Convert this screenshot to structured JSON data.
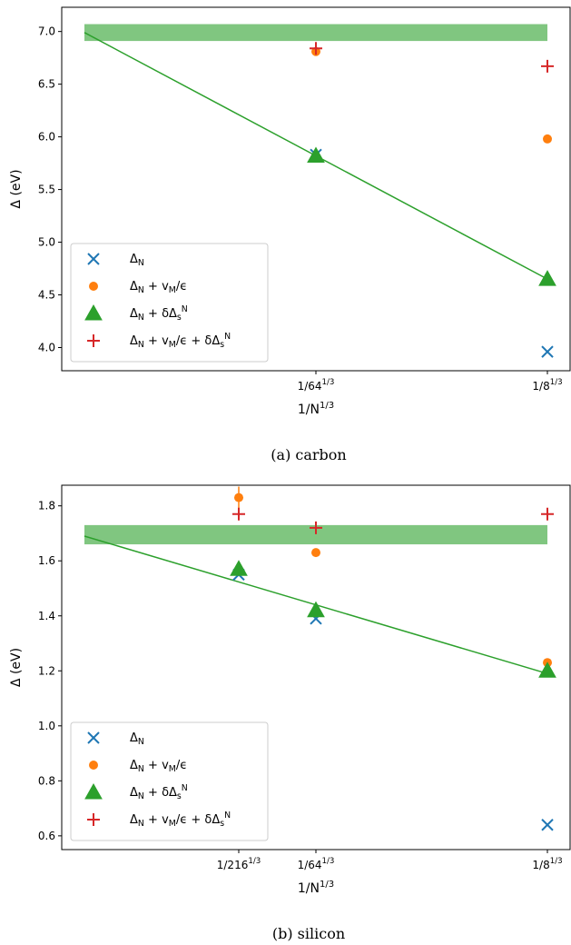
{
  "chart_data": [
    {
      "type": "scatter",
      "caption": "(a) carbon",
      "x_label": "1/N^{1/3}",
      "y_label": "Δ (eV)",
      "xlim": [
        -0.0245,
        0.5245
      ],
      "xticks": [
        {
          "value": 0.25,
          "label": "1/64^{1/3}"
        },
        {
          "value": 0.5,
          "label": "1/8^{1/3}"
        }
      ],
      "ylim": [
        3.78,
        7.23
      ],
      "yticks": [
        {
          "value": 4.0,
          "label": "4.0"
        },
        4.5,
        {
          "value": 5.0,
          "label": "5.0"
        },
        5.5,
        {
          "value": 6.0,
          "label": "6.0"
        },
        6.5,
        {
          "value": 7.0,
          "label": "7.0"
        }
      ],
      "legend": "lower left",
      "x": [
        0.25,
        0.5
      ],
      "band": {
        "x": [
          0,
          0.5
        ],
        "y": [
          6.91,
          7.07
        ],
        "color": "#2ca02c",
        "alpha": 0.6
      },
      "fit": {
        "x": [
          0,
          0.5
        ],
        "values": [
          6.99,
          4.65
        ],
        "color": "#2ca02c"
      },
      "series": [
        {
          "name": "Δ_N",
          "color": "#1f77b4",
          "marker": "x",
          "values": [
            5.83,
            3.96
          ]
        },
        {
          "name": "Δ_N + v_M/ϵ",
          "color": "#ff7f0e",
          "marker": "circle",
          "values": [
            6.81,
            5.98
          ],
          "errors": [
            0.02,
            0.01
          ]
        },
        {
          "name": "Δ_N + δΔ_s^N",
          "color": "#2ca02c",
          "marker": "triangle",
          "values": [
            5.82,
            4.65
          ]
        },
        {
          "name": "Δ_N + v_M/ϵ + δΔ_s^N",
          "color": "#d62728",
          "marker": "plus",
          "values": [
            6.84,
            6.67
          ]
        }
      ]
    },
    {
      "type": "scatter",
      "caption": "(b) silicon",
      "x_label": "1/N^{1/3}",
      "y_label": "Δ (eV)",
      "xlim": [
        -0.0245,
        0.5245
      ],
      "xticks": [
        {
          "value": 0.16667,
          "label": "1/216^{1/3}"
        },
        {
          "value": 0.25,
          "label": "1/64^{1/3}"
        },
        {
          "value": 0.5,
          "label": "1/8^{1/3}"
        }
      ],
      "ylim": [
        0.55,
        1.875
      ],
      "yticks": [
        0.6,
        0.8,
        {
          "value": 1.0,
          "label": "1.0"
        },
        1.2,
        1.4,
        1.6,
        1.8
      ],
      "legend": "lower left",
      "x": [
        0.16667,
        0.25,
        0.5
      ],
      "band": {
        "x": [
          0,
          0.5
        ],
        "y": [
          1.66,
          1.73
        ],
        "color": "#2ca02c",
        "alpha": 0.6
      },
      "fit": {
        "x": [
          0,
          0.5
        ],
        "values": [
          1.69,
          1.19
        ],
        "color": "#2ca02c"
      },
      "series": [
        {
          "name": "Δ_N",
          "color": "#1f77b4",
          "marker": "x",
          "values": [
            1.55,
            1.39,
            0.64
          ]
        },
        {
          "name": "Δ_N + v_M/ϵ",
          "color": "#ff7f0e",
          "marker": "circle",
          "values": [
            1.83,
            1.63,
            1.23
          ],
          "errors": [
            0.04,
            0.01,
            0.01
          ]
        },
        {
          "name": "Δ_N + δΔ_s^N",
          "color": "#2ca02c",
          "marker": "triangle",
          "values": [
            1.57,
            1.42,
            1.2
          ]
        },
        {
          "name": "Δ_N + v_M/ϵ + δΔ_s^N",
          "color": "#d62728",
          "marker": "plus",
          "values": [
            1.77,
            1.72,
            1.77
          ]
        }
      ]
    }
  ]
}
